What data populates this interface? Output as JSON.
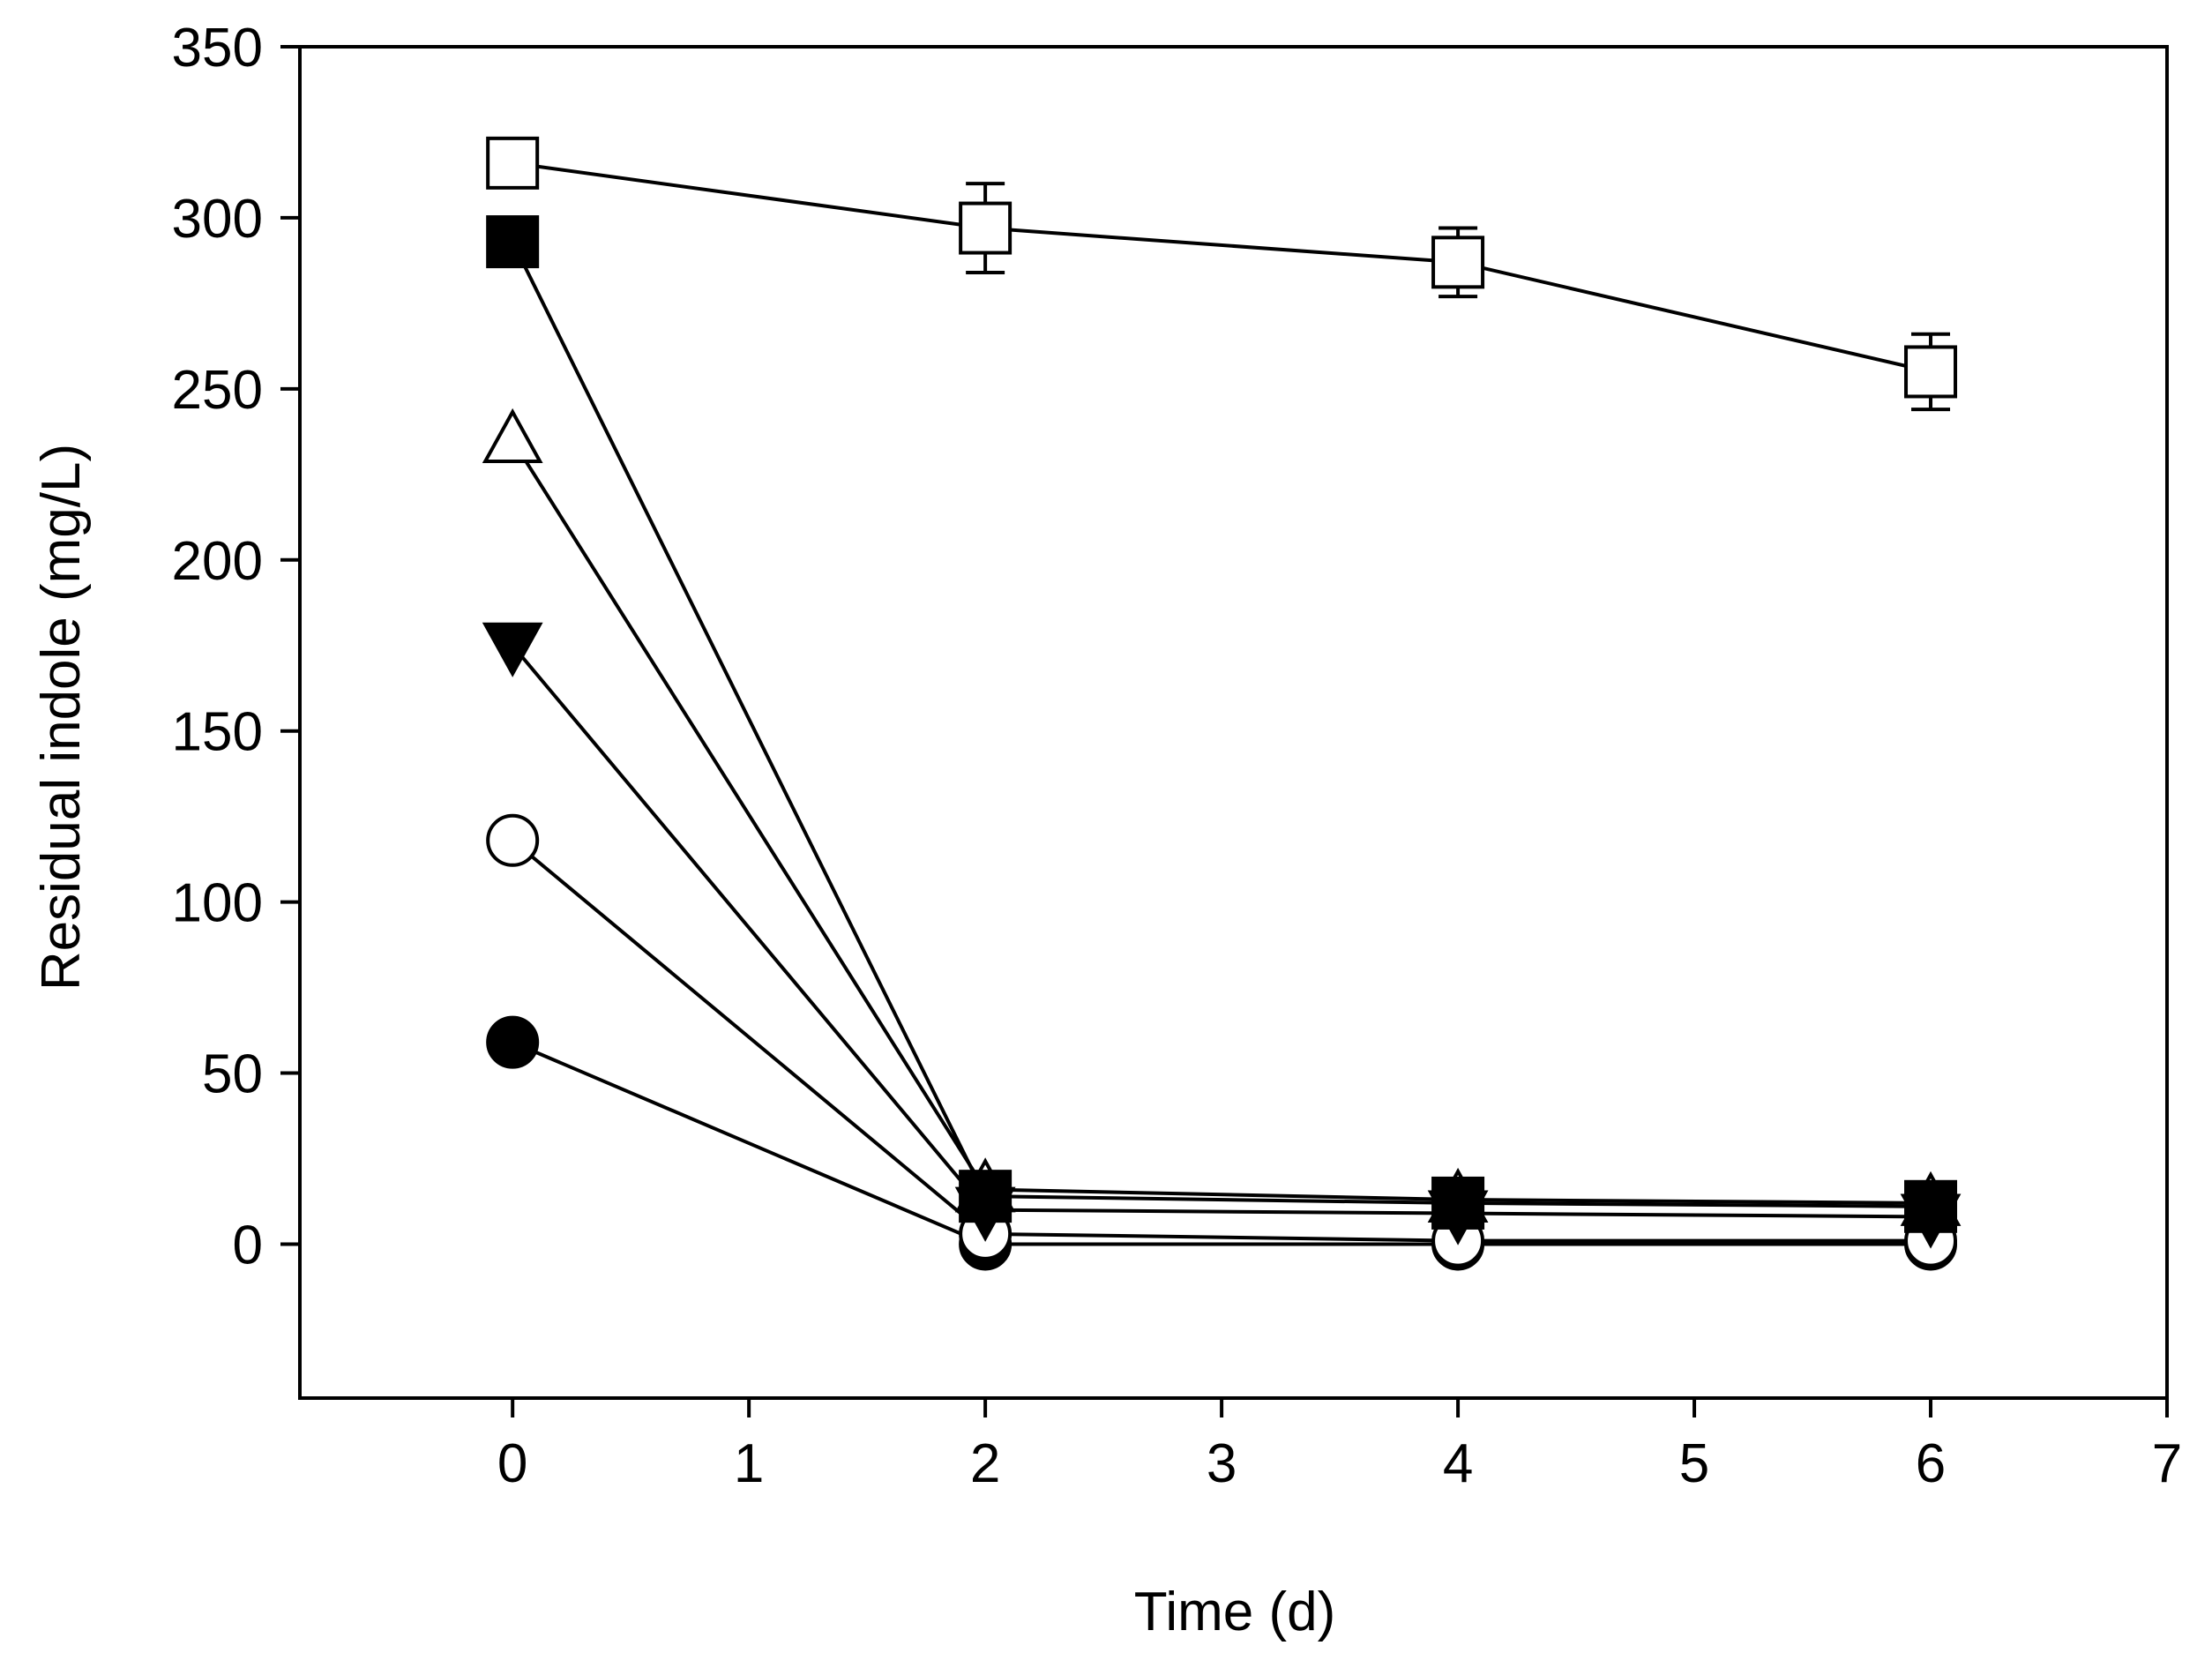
{
  "chart_data": {
    "type": "line",
    "title": "",
    "xlabel": "Time (d)",
    "ylabel": "Residual indole (mg/L)",
    "xlim": [
      -0.9,
      7
    ],
    "ylim": [
      -45,
      350
    ],
    "x_ticks": [
      0,
      1,
      2,
      3,
      4,
      5,
      6,
      7
    ],
    "x_tick_labels": [
      "0",
      "1",
      "2",
      "3",
      "4",
      "5",
      "6",
      "7"
    ],
    "y_ticks": [
      0,
      50,
      100,
      150,
      200,
      250,
      300,
      350
    ],
    "y_tick_labels": [
      "0",
      "50",
      "100",
      "150",
      "200",
      "250",
      "300",
      "350"
    ],
    "grid": false,
    "legend": "none",
    "x": [
      0,
      2,
      4,
      6
    ],
    "series": [
      {
        "name": "open square",
        "marker": "square-open",
        "values": [
          316,
          297,
          287,
          255
        ],
        "error": [
          0,
          13,
          10,
          11
        ]
      },
      {
        "name": "filled square",
        "marker": "square-filled",
        "values": [
          293,
          14,
          12,
          11
        ],
        "error": [
          0,
          2,
          2,
          2
        ]
      },
      {
        "name": "open triangle",
        "marker": "triangle-up-open",
        "values": [
          235,
          16,
          13,
          12
        ],
        "error": [
          0,
          2,
          2,
          2
        ]
      },
      {
        "name": "filled down triangle",
        "marker": "triangle-down-filled",
        "values": [
          175,
          10,
          9,
          8
        ],
        "error": [
          0,
          2,
          2,
          2
        ]
      },
      {
        "name": "open circle",
        "marker": "circle-open",
        "values": [
          118,
          3,
          1,
          1
        ],
        "error": [
          0,
          1,
          1,
          1
        ]
      },
      {
        "name": "filled circle",
        "marker": "circle-filled",
        "values": [
          59,
          0,
          0,
          0
        ],
        "error": [
          0,
          0,
          0,
          0
        ]
      }
    ]
  }
}
